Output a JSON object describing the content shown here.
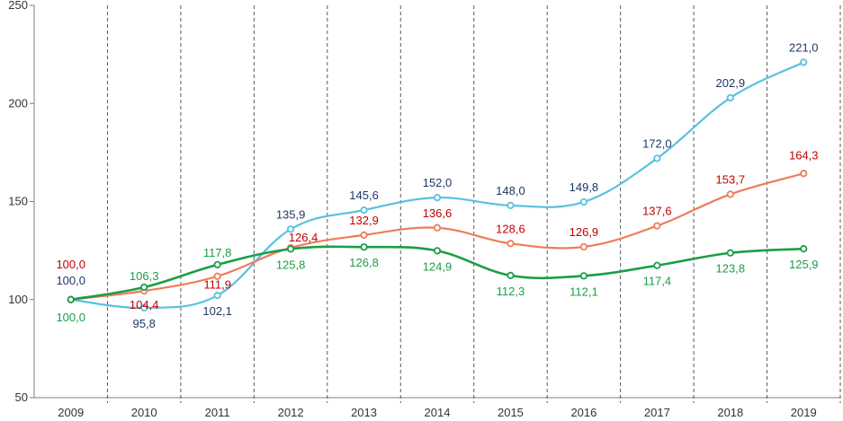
{
  "chart_data": {
    "type": "line",
    "title": "",
    "xlabel": "",
    "ylabel": "",
    "ylim": [
      50,
      250
    ],
    "yticks": [
      "50",
      "100",
      "150",
      "200",
      "250"
    ],
    "ytick_values": [
      50,
      100,
      150,
      200,
      250
    ],
    "categories": [
      "2009",
      "2010",
      "2011",
      "2012",
      "2013",
      "2014",
      "2015",
      "2016",
      "2017",
      "2018",
      "2019"
    ],
    "grid": "vertical-dashed",
    "series": [
      {
        "name": "blue",
        "color": "#5bc0de",
        "label_color": "#1f3864",
        "label_position": "above",
        "values": [
          100.0,
          95.8,
          102.1,
          135.9,
          145.6,
          152.0,
          148.0,
          149.8,
          172.0,
          202.9,
          221.0
        ],
        "labels": [
          "100,0",
          "95,8",
          "102,1",
          "135,9",
          "145,6",
          "152,0",
          "148,0",
          "149,8",
          "172,0",
          "202,9",
          "221,0"
        ]
      },
      {
        "name": "red",
        "color": "#ed7d5a",
        "label_color": "#c00000",
        "label_position": "above",
        "values": [
          100.0,
          104.4,
          111.9,
          126.4,
          132.9,
          136.6,
          128.6,
          126.9,
          137.6,
          153.7,
          164.3
        ],
        "labels": [
          "100,0",
          "104,4",
          "111,9",
          "126,4",
          "132,9",
          "136,6",
          "128,6",
          "126,9",
          "137,6",
          "153,7",
          "164,3"
        ]
      },
      {
        "name": "green",
        "color": "#1a9e48",
        "label_color": "#1a9e48",
        "label_position": "below",
        "values": [
          100.0,
          106.3,
          117.8,
          125.8,
          126.8,
          124.9,
          112.3,
          112.1,
          117.4,
          123.8,
          125.9
        ],
        "labels": [
          "100,0",
          "106,3",
          "117,8",
          "125,8",
          "126,8",
          "124,9",
          "112,3",
          "112,1",
          "117,4",
          "123,8",
          "125,9"
        ]
      }
    ]
  }
}
